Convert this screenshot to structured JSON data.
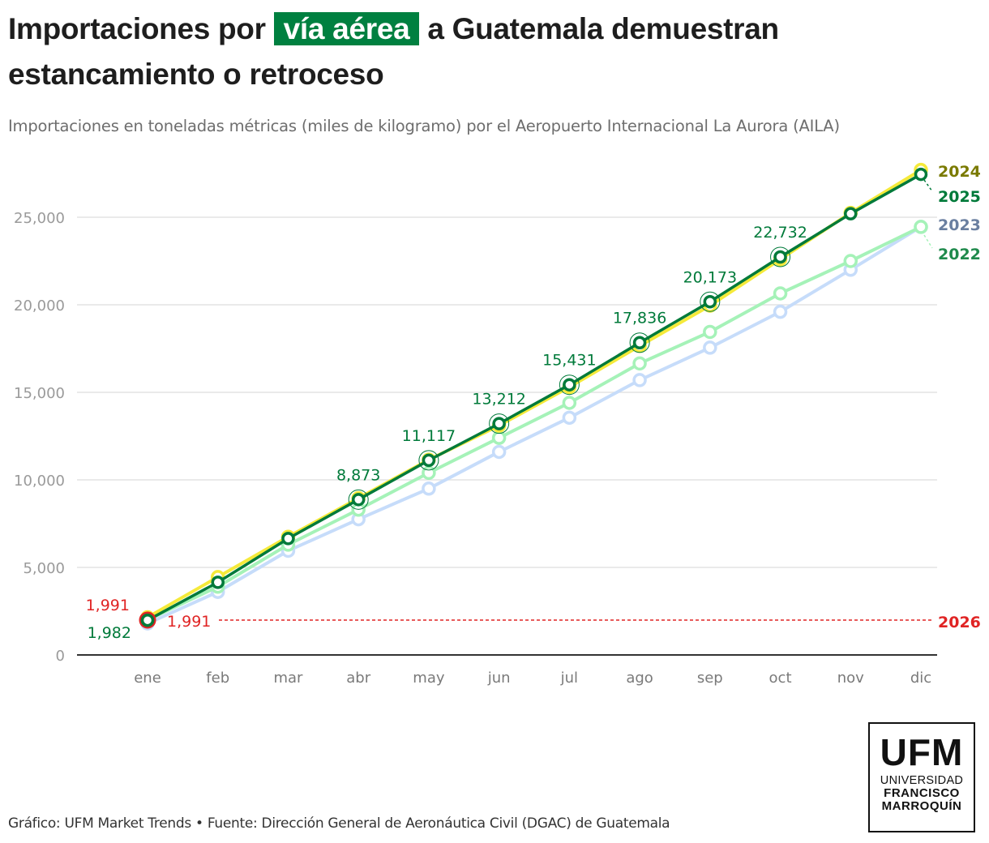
{
  "header": {
    "title_before": "Importaciones por ",
    "title_highlight": "vía aérea",
    "title_after": " a Guatemala demuestran estancamiento o retroceso",
    "subtitle": "Importaciones en toneladas métricas (miles de kilogramo) por el Aeropuerto Internacional La Aurora (AILA)",
    "highlight_color": "#008040"
  },
  "footer": {
    "credit": "Gráfico: UFM Market Trends • Fuente: Dirección General de Aeronáutica Civil (DGAC) de Guatemala"
  },
  "logo": {
    "big": "UFM",
    "line1": "UNIVERSIDAD",
    "line2": "FRANCISCO",
    "line3": "MARROQUÍN"
  },
  "chart_data": {
    "type": "line",
    "title": "Importaciones por vía aérea a Guatemala demuestran estancamiento o retroceso",
    "subtitle": "Importaciones en toneladas métricas (miles de kilogramo) por el Aeropuerto Internacional La Aurora (AILA)",
    "xlabel": "",
    "ylabel": "",
    "categories": [
      "ene",
      "feb",
      "mar",
      "abr",
      "may",
      "jun",
      "jul",
      "ago",
      "sep",
      "oct",
      "nov",
      "dic"
    ],
    "ylim": [
      0,
      28000
    ],
    "yticks": [
      0,
      5000,
      10000,
      15000,
      20000,
      25000
    ],
    "ytick_labels": [
      "0",
      "5,000",
      "10,000",
      "15,000",
      "20,000",
      "25,000"
    ],
    "grid": true,
    "legend": "direct labels at right end of lines",
    "series": [
      {
        "name": "2023",
        "color": "#c6dcfa",
        "label_color": "#6a7fa0",
        "values": [
          1800,
          3600,
          5950,
          7750,
          9500,
          11600,
          13550,
          15700,
          17550,
          19600,
          22000,
          24450
        ]
      },
      {
        "name": "2022",
        "color": "#a5f2b8",
        "label_color": "#1f8a4c",
        "values": [
          2000,
          3900,
          6300,
          8300,
          10400,
          12400,
          14400,
          16650,
          18450,
          20650,
          22500,
          24450
        ]
      },
      {
        "name": "2024",
        "color": "#f5ea3a",
        "label_color": "#7a7a00",
        "values": [
          2150,
          4450,
          6750,
          8950,
          11150,
          13100,
          15300,
          17650,
          19950,
          22600,
          25250,
          27700
        ]
      },
      {
        "name": "2025",
        "color": "#007a3a",
        "label_color": "#007a3a",
        "values": [
          1982,
          4150,
          6650,
          8873,
          11117,
          13212,
          15431,
          17836,
          20173,
          22732,
          25200,
          27450
        ]
      },
      {
        "name": "2026",
        "color": "#e02424",
        "label_color": "#e02424",
        "values": [
          1991,
          null,
          null,
          null,
          null,
          null,
          null,
          null,
          null,
          null,
          null,
          null
        ],
        "reference_line": 1991
      }
    ],
    "annotations": [
      {
        "series": "2025",
        "category": "ene",
        "text": "1,982"
      },
      {
        "series": "2026",
        "category": "ene",
        "text": "1,991"
      },
      {
        "series": "2026",
        "category": "ene-right",
        "text": "1,991"
      },
      {
        "series": "2025",
        "category": "abr",
        "text": "8,873"
      },
      {
        "series": "2025",
        "category": "may",
        "text": "11,117"
      },
      {
        "series": "2025",
        "category": "jun",
        "text": "13,212"
      },
      {
        "series": "2025",
        "category": "jul",
        "text": "15,431"
      },
      {
        "series": "2025",
        "category": "ago",
        "text": "17,836"
      },
      {
        "series": "2025",
        "category": "sep",
        "text": "20,173"
      },
      {
        "series": "2025",
        "category": "oct",
        "text": "22,732"
      }
    ]
  }
}
